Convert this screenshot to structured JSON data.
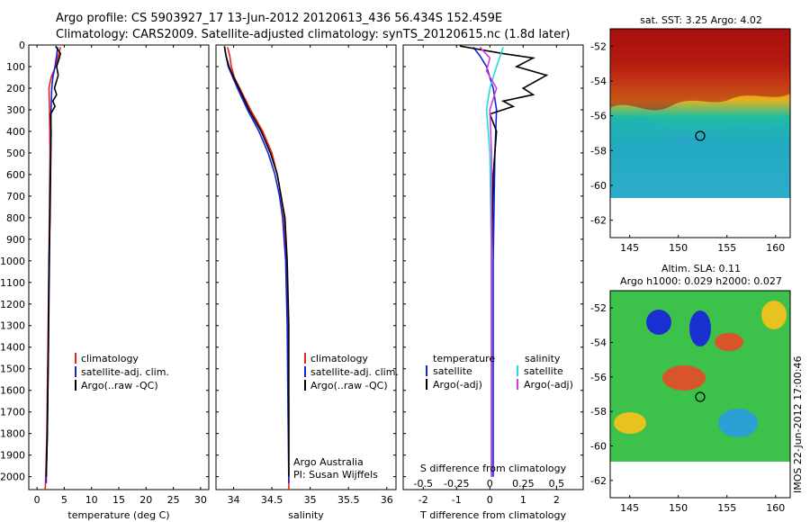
{
  "header": {
    "line1": "Argo profile: CS 5903927_17 13-Jun-2012 20120613_436 56.434S 152.459E",
    "line2": "Climatology: CARS2009. Satellite-adjusted climatology: synTS_20120615.nc (1.8d later)"
  },
  "colors": {
    "climatology": "#e8221b",
    "satellite": "#1023d8",
    "argo": "#000000",
    "sal_satellite": "#22dcdc",
    "sal_argo": "#d63bd6"
  },
  "depth_axis": {
    "ticks": [
      "0",
      "100",
      "200",
      "300",
      "400",
      "500",
      "600",
      "700",
      "800",
      "900",
      "1000",
      "1100",
      "1200",
      "1300",
      "1400",
      "1500",
      "1600",
      "1700",
      "1800",
      "1900",
      "2000"
    ]
  },
  "chart_data": [
    {
      "type": "line",
      "id": "temperature",
      "xlabel": "temperature (deg C)",
      "xlim": [
        -1.5,
        31.5
      ],
      "ylim": [
        2060,
        0
      ],
      "xticks": [
        "0",
        "5",
        "10",
        "15",
        "20",
        "25",
        "30"
      ],
      "legend": [
        "climatology",
        "satellite-adj. clim.",
        "Argo(..raw -QC)"
      ],
      "series": [
        {
          "name": "climatology",
          "color_key": "climatology",
          "points": [
            [
              4.3,
              10
            ],
            [
              3.9,
              50
            ],
            [
              3.4,
              100
            ],
            [
              2.6,
              150
            ],
            [
              2.2,
              200
            ],
            [
              2.3,
              300
            ],
            [
              2.4,
              500
            ],
            [
              2.3,
              700
            ],
            [
              2.2,
              1000
            ],
            [
              2.0,
              1400
            ],
            [
              1.8,
              1800
            ],
            [
              1.6,
              2000
            ],
            [
              1.5,
              2060
            ]
          ]
        },
        {
          "name": "satellite-adj. clim.",
          "color_key": "satellite",
          "points": [
            [
              3.8,
              10
            ],
            [
              3.6,
              50
            ],
            [
              3.3,
              100
            ],
            [
              2.9,
              150
            ],
            [
              2.7,
              200
            ],
            [
              2.6,
              300
            ],
            [
              2.5,
              500
            ],
            [
              2.4,
              700
            ],
            [
              2.3,
              1000
            ],
            [
              2.1,
              1400
            ],
            [
              1.9,
              1800
            ],
            [
              1.7,
              2000
            ],
            [
              1.7,
              2030
            ]
          ]
        },
        {
          "name": "Argo(..raw -QC)",
          "color_key": "argo",
          "points": [
            [
              3.4,
              5
            ],
            [
              4.3,
              40
            ],
            [
              4.1,
              60
            ],
            [
              3.6,
              100
            ],
            [
              3.9,
              140
            ],
            [
              3.2,
              200
            ],
            [
              3.6,
              230
            ],
            [
              2.9,
              260
            ],
            [
              3.3,
              285
            ],
            [
              2.5,
              320
            ],
            [
              2.6,
              400
            ],
            [
              2.5,
              600
            ],
            [
              2.4,
              800
            ],
            [
              2.2,
              1000
            ],
            [
              2.1,
              1400
            ],
            [
              1.9,
              1800
            ],
            [
              1.7,
              2000
            ]
          ]
        }
      ]
    },
    {
      "type": "line",
      "id": "salinity",
      "xlabel": "salinity",
      "xlim": [
        33.77,
        36.12
      ],
      "ylim": [
        2060,
        0
      ],
      "xticks": [
        "34",
        "34.5",
        "35",
        "35.5",
        "36"
      ],
      "legend": [
        "climatology",
        "satellite-adj. clim.",
        "Argo(..raw -QC)"
      ],
      "annotation": [
        "Argo Australia",
        "PI: Susan Wijffels"
      ],
      "series": [
        {
          "name": "climatology",
          "color_key": "climatology",
          "points": [
            [
              33.92,
              10
            ],
            [
              33.95,
              50
            ],
            [
              33.97,
              100
            ],
            [
              34.01,
              150
            ],
            [
              34.08,
              200
            ],
            [
              34.22,
              300
            ],
            [
              34.38,
              400
            ],
            [
              34.5,
              500
            ],
            [
              34.57,
              600
            ],
            [
              34.62,
              700
            ],
            [
              34.66,
              800
            ],
            [
              34.69,
              1000
            ],
            [
              34.71,
              1300
            ],
            [
              34.72,
              1700
            ],
            [
              34.72,
              2060
            ]
          ]
        },
        {
          "name": "satellite-adj. clim.",
          "color_key": "satellite",
          "points": [
            [
              33.88,
              10
            ],
            [
              33.9,
              50
            ],
            [
              33.93,
              100
            ],
            [
              33.99,
              150
            ],
            [
              34.05,
              200
            ],
            [
              34.18,
              300
            ],
            [
              34.33,
              400
            ],
            [
              34.45,
              500
            ],
            [
              34.54,
              600
            ],
            [
              34.6,
              700
            ],
            [
              34.64,
              800
            ],
            [
              34.68,
              1000
            ],
            [
              34.7,
              1300
            ],
            [
              34.71,
              1700
            ],
            [
              34.72,
              2030
            ]
          ]
        },
        {
          "name": "Argo(..raw -QC)",
          "color_key": "argo",
          "points": [
            [
              33.88,
              5
            ],
            [
              33.9,
              50
            ],
            [
              33.94,
              100
            ],
            [
              34.0,
              150
            ],
            [
              34.07,
              200
            ],
            [
              34.2,
              300
            ],
            [
              34.36,
              400
            ],
            [
              34.48,
              500
            ],
            [
              34.57,
              600
            ],
            [
              34.62,
              700
            ],
            [
              34.67,
              800
            ],
            [
              34.7,
              1000
            ],
            [
              34.72,
              1300
            ],
            [
              34.72,
              1700
            ],
            [
              34.72,
              2000
            ]
          ]
        }
      ]
    },
    {
      "type": "line",
      "id": "difference",
      "xlabel": "T difference from climatology",
      "xlabel2": "S difference from climatology",
      "xlim": [
        -2.6,
        2.8
      ],
      "ylim": [
        2060,
        0
      ],
      "xticks": [
        "-2",
        "-1",
        "0",
        "1",
        "2"
      ],
      "xticks2": [
        "-0.5",
        "-0.25",
        "0",
        "0.25",
        "0.5"
      ],
      "legend_temperature": {
        "title": "temperature",
        "items": [
          "satellite",
          "Argo(-adj)"
        ]
      },
      "legend_salinity": {
        "title": "salinity",
        "items": [
          "satellite",
          "Argo(-adj)"
        ]
      },
      "series": [
        {
          "name": "T satellite",
          "color_key": "satellite",
          "points": [
            [
              -0.5,
              10
            ],
            [
              -0.3,
              50
            ],
            [
              -0.1,
              100
            ],
            [
              0.1,
              200
            ],
            [
              0.2,
              300
            ],
            [
              0.15,
              500
            ],
            [
              0.1,
              1000
            ],
            [
              0.1,
              1500
            ],
            [
              0.1,
              2000
            ]
          ]
        },
        {
          "name": "T Argo(-adj)",
          "color_key": "argo",
          "points": [
            [
              -0.9,
              5
            ],
            [
              0.4,
              40
            ],
            [
              1.3,
              60
            ],
            [
              0.8,
              100
            ],
            [
              1.7,
              140
            ],
            [
              1.0,
              200
            ],
            [
              1.3,
              230
            ],
            [
              0.4,
              260
            ],
            [
              0.7,
              285
            ],
            [
              0.0,
              320
            ],
            [
              0.2,
              400
            ],
            [
              0.1,
              600
            ],
            [
              0.05,
              1000
            ],
            [
              0.05,
              1500
            ],
            [
              0.05,
              2000
            ]
          ]
        },
        {
          "name": "S satellite",
          "color_key": "sal_satellite",
          "points": [
            [
              0.4,
              10
            ],
            [
              0.2,
              100
            ],
            [
              0.0,
              200
            ],
            [
              -0.1,
              300
            ],
            [
              0.0,
              500
            ],
            [
              0.05,
              1000
            ],
            [
              0.05,
              1500
            ],
            [
              0.05,
              2000
            ]
          ]
        },
        {
          "name": "S Argo(-adj)",
          "color_key": "sal_argo",
          "points": [
            [
              -0.3,
              10
            ],
            [
              0.0,
              60
            ],
            [
              -0.1,
              120
            ],
            [
              0.2,
              200
            ],
            [
              0.0,
              300
            ],
            [
              0.05,
              500
            ],
            [
              0.05,
              1000
            ],
            [
              0.05,
              2000
            ]
          ]
        }
      ]
    }
  ],
  "maps": [
    {
      "id": "sst",
      "title": "sat. SST: 3.25  Argo: 4.02",
      "xticks": [
        "145",
        "150",
        "155",
        "160"
      ],
      "yticks": [
        "-52",
        "-54",
        "-56",
        "-58",
        "-60",
        "-62"
      ]
    },
    {
      "id": "sla",
      "title": "Altim. SLA: 0.11",
      "subtitle": "Argo h1000: 0.029 h2000: 0.027",
      "xticks": [
        "145",
        "150",
        "155",
        "160"
      ],
      "yticks": [
        "-52",
        "-54",
        "-56",
        "-58",
        "-60",
        "-62"
      ]
    }
  ],
  "stamp": "IMOS 22-Jun-2012 17:00:46"
}
